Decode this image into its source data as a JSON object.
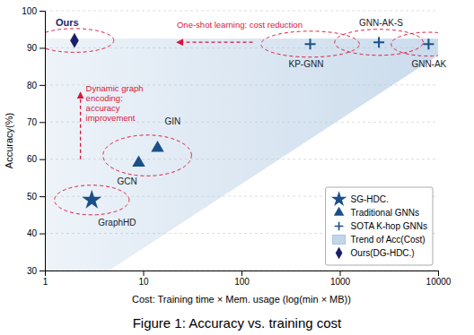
{
  "chart_data": {
    "type": "scatter",
    "title": "Figure 1: Accuracy vs. training cost",
    "x_label": "Cost: Training time × Mem. usage (log(min × MB))",
    "y_label": "Accuracy(%)",
    "log": "x",
    "grid": "y",
    "legend": "lower right",
    "xlim": [
      1,
      10000
    ],
    "xticks": [
      1,
      10,
      100,
      1000,
      10000
    ],
    "ylim": [
      30,
      100
    ],
    "yticks": [
      30,
      40,
      50,
      60,
      70,
      80,
      90,
      100
    ],
    "series": [
      {
        "name": "SG-HDC.",
        "type": "scatter",
        "marker": "star",
        "color": "#1a4f8a",
        "x": [
          3
        ],
        "values": [
          49
        ],
        "labels": [
          "GraphHD"
        ]
      },
      {
        "name": "Traditional GNNs",
        "type": "scatter",
        "marker": "triangle",
        "color": "#1a5088",
        "x": [
          9,
          14
        ],
        "values": [
          59,
          63
        ],
        "labels": [
          "GCN",
          "GIN"
        ]
      },
      {
        "name": "SOTA K-hop GNNs",
        "type": "scatter",
        "marker": "plus",
        "color": "#1a5088",
        "x": [
          500,
          2500,
          8000
        ],
        "values": [
          91,
          91.5,
          91
        ],
        "labels": [
          "KP-GNN",
          "GNN-AK-S",
          "GNN-AK"
        ]
      },
      {
        "name": "Trend of Acc(Cost)",
        "type": "area",
        "color": "#a8c4e0",
        "x": [
          1,
          4.5,
          10000
        ],
        "values": [
          92.5,
          92.5,
          92.5
        ],
        "lower": [
          30,
          30,
          88
        ]
      },
      {
        "name": "Ours(DG-HDC.)",
        "type": "scatter",
        "marker": "diamond",
        "color": "#1a1f6a",
        "x": [
          2
        ],
        "values": [
          92
        ],
        "labels": [
          "Ours"
        ]
      }
    ],
    "ellipses": [
      {
        "x": 3,
        "y": 49,
        "rx_log": 0.38,
        "ry": 4.0,
        "color": "#dc143c"
      },
      {
        "x": 11,
        "y": 61,
        "rx_log": 0.45,
        "ry": 5.5,
        "color": "#dc143c"
      },
      {
        "x": 2,
        "y": 92,
        "rx_log": 0.4,
        "ry": 3.2,
        "color": "#dc143c"
      },
      {
        "x": 500,
        "y": 91,
        "rx_log": 0.5,
        "ry": 3.5,
        "color": "#dc143c"
      },
      {
        "x": 2500,
        "y": 91.5,
        "rx_log": 0.45,
        "ry": 3.5,
        "color": "#dc143c"
      },
      {
        "x": 8000,
        "y": 91,
        "rx_log": 0.38,
        "ry": 3.2,
        "color": "#dc143c"
      }
    ],
    "annotations": [
      {
        "text": [
          "One-shot learning: cost reduction"
        ],
        "color": "#dc143c",
        "arrow_x": [
          130,
          22
        ],
        "arrow_y": [
          91.5,
          91.5
        ]
      },
      {
        "text": [
          "Dynamic graph",
          "encoding:",
          "accuracy",
          "improvement"
        ],
        "color": "#dc143c",
        "arrow_x": [
          2.3,
          2.3
        ],
        "arrow_y": [
          60,
          78
        ]
      }
    ]
  }
}
